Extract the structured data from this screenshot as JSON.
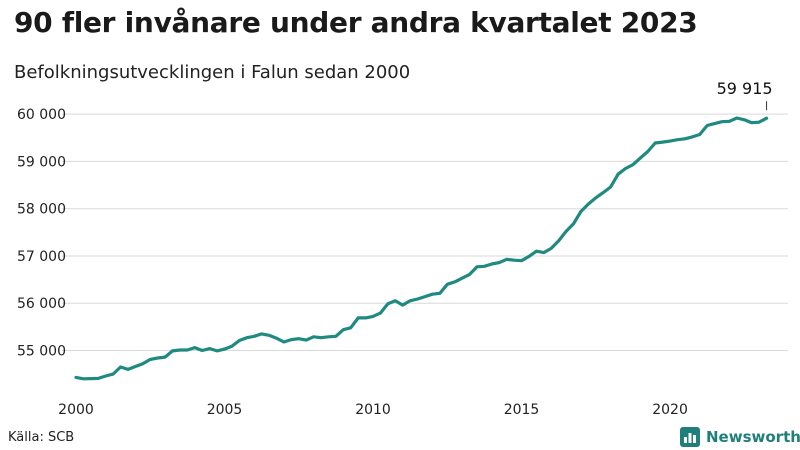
{
  "title": "90 fler invånare under andra kvartalet 2023",
  "subtitle": "Befolkningsutvecklingen i Falun sedan 2000",
  "source": "Källa: SCB",
  "brand": {
    "name": "Newsworthy",
    "icon": "bar-chart-logo-icon",
    "color": "#1f7f7a"
  },
  "colors": {
    "line": "#1f8a80",
    "grid": "#d9d9d9"
  },
  "chart_data": {
    "type": "line",
    "title": "90 fler invånare under andra kvartalet 2023",
    "subtitle": "Befolkningsutvecklingen i Falun sedan 2000",
    "xlabel": "",
    "ylabel": "",
    "xlim": [
      2000,
      2023.5
    ],
    "ylim": [
      54100,
      60300
    ],
    "x_ticks": [
      2000,
      2005,
      2010,
      2015,
      2020
    ],
    "x_tick_labels": [
      "2000",
      "2005",
      "2010",
      "2015",
      "2020"
    ],
    "y_ticks": [
      55000,
      56000,
      57000,
      58000,
      59000,
      60000
    ],
    "y_tick_labels": [
      "55 000",
      "56 000",
      "57 000",
      "58 000",
      "59 000",
      "60 000"
    ],
    "grid": true,
    "legend": "none",
    "annotation": {
      "x": 2023.25,
      "y": 59915,
      "label": "59 915"
    },
    "series": [
      {
        "x": [
          2000.0,
          2000.25,
          2000.5,
          2000.75,
          2001.0,
          2001.25,
          2001.5,
          2001.75,
          2002.0,
          2002.25,
          2002.5,
          2002.75,
          2003.0,
          2003.25,
          2003.5,
          2003.75,
          2004.0,
          2004.25,
          2004.5,
          2004.75,
          2005.0,
          2005.25,
          2005.5,
          2005.75,
          2006.0,
          2006.25,
          2006.5,
          2006.75,
          2007.0,
          2007.25,
          2007.5,
          2007.75,
          2008.0,
          2008.25,
          2008.5,
          2008.75,
          2009.0,
          2009.25,
          2009.5,
          2009.75,
          2010.0,
          2010.25,
          2010.5,
          2010.75,
          2011.0,
          2011.25,
          2011.5,
          2011.75,
          2012.0,
          2012.25,
          2012.5,
          2012.75,
          2013.0,
          2013.25,
          2013.5,
          2013.75,
          2014.0,
          2014.25,
          2014.5,
          2014.75,
          2015.0,
          2015.25,
          2015.5,
          2015.75,
          2016.0,
          2016.25,
          2016.5,
          2016.75,
          2017.0,
          2017.25,
          2017.5,
          2017.75,
          2018.0,
          2018.25,
          2018.5,
          2018.75,
          2019.0,
          2019.25,
          2019.5,
          2019.75,
          2020.0,
          2020.25,
          2020.5,
          2020.75,
          2021.0,
          2021.25,
          2021.5,
          2021.75,
          2022.0,
          2022.25,
          2022.5,
          2022.75,
          2023.0,
          2023.25
        ],
        "values": [
          54430,
          54400,
          54405,
          54410,
          54460,
          54500,
          54650,
          54600,
          54660,
          54720,
          54810,
          54840,
          54860,
          54990,
          55010,
          55010,
          55060,
          55000,
          55040,
          54990,
          55030,
          55090,
          55210,
          55270,
          55300,
          55350,
          55320,
          55260,
          55180,
          55230,
          55250,
          55220,
          55290,
          55270,
          55290,
          55300,
          55440,
          55480,
          55690,
          55690,
          55720,
          55790,
          55990,
          56050,
          55960,
          56050,
          56090,
          56140,
          56190,
          56210,
          56400,
          56450,
          56530,
          56610,
          56770,
          56780,
          56830,
          56860,
          56930,
          56910,
          56900,
          56990,
          57100,
          57070,
          57160,
          57320,
          57520,
          57680,
          57940,
          58100,
          58230,
          58340,
          58460,
          58730,
          58850,
          58930,
          59070,
          59210,
          59390,
          59410,
          59430,
          59460,
          59480,
          59520,
          59570,
          59760,
          59800,
          59840,
          59850,
          59920,
          59880,
          59820,
          59830,
          59915
        ]
      }
    ]
  }
}
